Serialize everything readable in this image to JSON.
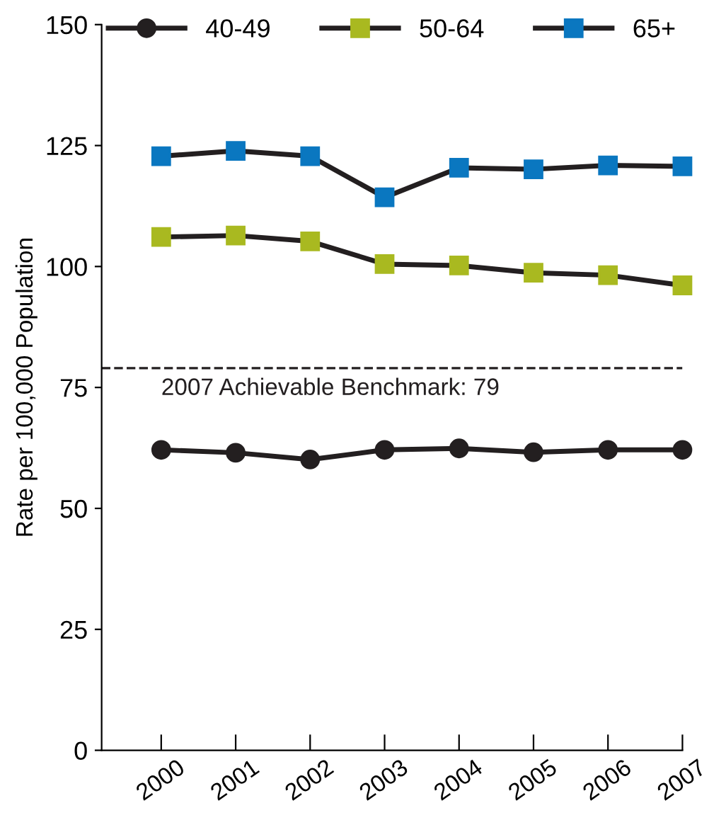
{
  "chart_data": {
    "type": "line",
    "ylabel": "Rate per 100,000 Population",
    "categories": [
      "2000",
      "2001",
      "2002",
      "2003",
      "2004",
      "2005",
      "2006",
      "2007"
    ],
    "series": [
      {
        "name": "40-49",
        "color": "#231f20",
        "marker": "circle",
        "values": [
          62.1,
          61.5,
          60.1,
          62.1,
          62.4,
          61.6,
          62.1,
          62.1
        ]
      },
      {
        "name": "50-64",
        "color": "#a9b920",
        "marker": "square",
        "values": [
          106.1,
          106.4,
          105.2,
          100.5,
          100.2,
          98.7,
          98.2,
          96.1
        ]
      },
      {
        "name": "65+",
        "color": "#0a77c0",
        "marker": "square",
        "values": [
          122.8,
          123.9,
          122.8,
          114.3,
          120.4,
          120.1,
          120.9,
          120.7
        ]
      }
    ],
    "ylim": [
      0,
      150
    ],
    "yticks": [
      0,
      25,
      50,
      75,
      100,
      125,
      150
    ],
    "ref_lines": [
      {
        "axis": "y",
        "value": 79,
        "label": "2007 Achievable Benchmark: 79",
        "color": "#231f20",
        "line_style": "dashed"
      }
    ],
    "grid": false,
    "legend": "top",
    "line_style": "solid"
  }
}
